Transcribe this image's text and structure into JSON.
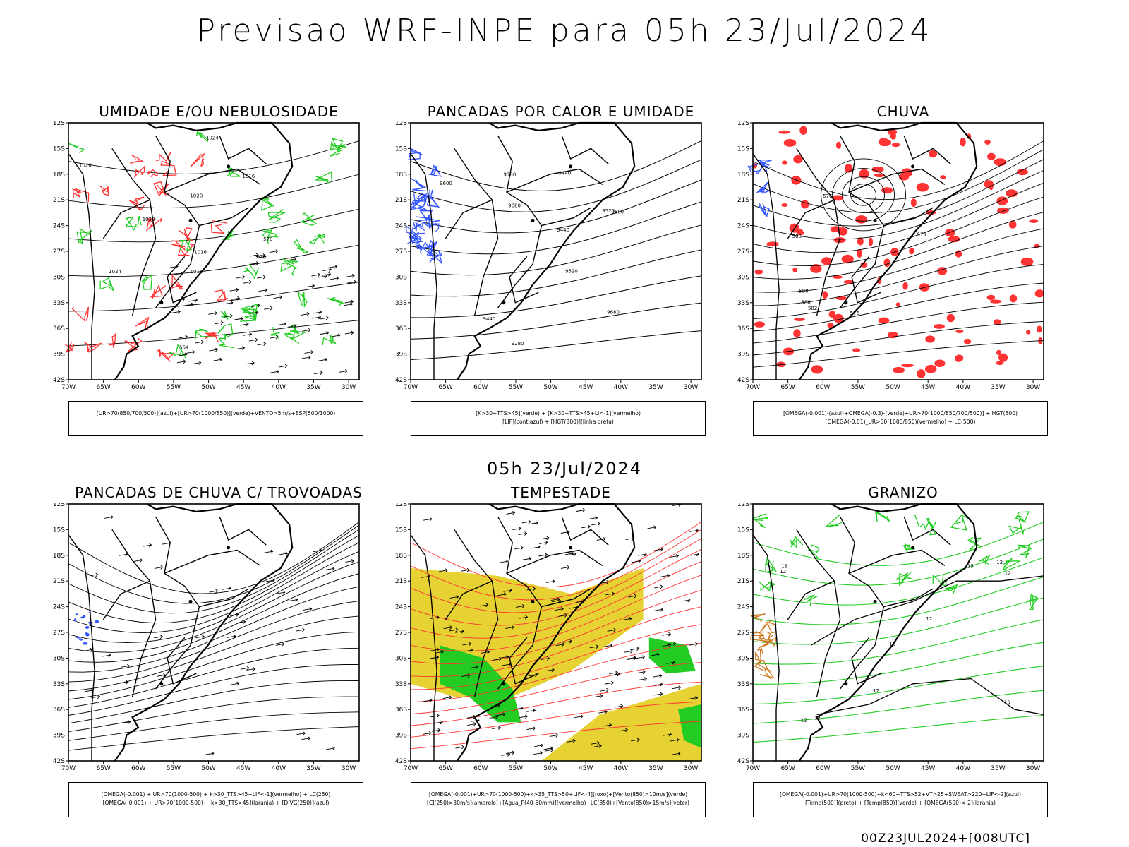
{
  "header": {
    "title": "Previsao WRF-INPE  para 05h 23/Jul/2024",
    "mid_title": "05h 23/Jul/2024",
    "footer": "00Z23JUL2024+[008UTC]"
  },
  "axes": {
    "lat_labels": [
      "12S",
      "15S",
      "18S",
      "21S",
      "24S",
      "27S",
      "30S",
      "33S",
      "36S",
      "39S",
      "42S"
    ],
    "lon_labels": [
      "70W",
      "65W",
      "60W",
      "55W",
      "50W",
      "45W",
      "40W",
      "35W",
      "30W"
    ]
  },
  "colors": {
    "green": "#22cc22",
    "red": "#ff3333",
    "blue": "#3355ff",
    "yellow": "#e6d232",
    "orange": "#cc7a22",
    "black": "#000000"
  },
  "panels": [
    {
      "id": "umidade",
      "title": "UMIDADE E/OU NEBULOSIDADE",
      "legend": [
        "[UR>70(850/700/500)](azul)+[UR>70(1000/850)](verde)+VENTO>5m/s+ESP(500/1000)"
      ],
      "contour_labels": [
        "1016",
        "1020",
        "1020",
        "1024",
        "1024",
        "1020",
        "1020",
        "1016",
        "1016",
        "570",
        "564"
      ]
    },
    {
      "id": "pancadas-calor",
      "title": "PANCADAS POR CALOR E UMIDADE",
      "legend": [
        "[K>30+TTS>45](verde) + [K>30+TTS>45+LI<-1](vermelho)",
        "[LIF](cont.azul) + [HGT(300)](linha preta)"
      ],
      "contour_labels": [
        "9680",
        "9680",
        "9680",
        "9600",
        "9520",
        "9520",
        "9440",
        "9440",
        "9440",
        "9280",
        "9380"
      ]
    },
    {
      "id": "chuva",
      "title": "CHUVA",
      "legend": [
        "[OMEGA(-0.001)-(azul)+OMEGA(-0.3)-(verde)+UR>70(1000/850/700/500)] + HGT(500)",
        "[OMEGA(-0.01)_UR>50(1000/850)(vermelho) + LC(500)"
      ],
      "contour_labels": [
        "588",
        "588",
        "588",
        "582",
        "576",
        "576",
        "573"
      ]
    },
    {
      "id": "pancadas-trovoadas",
      "title": "PANCADAS DE CHUVA C/ TROVOADAS",
      "legend": [
        "[OMEGA(-0.001) + UR>70(1000-500) + k>30_TTS>45+LIF<-1](vermelho) + LC(250)",
        "[OMEGA(-0.001) + UR>70(1000-500) + k>30_TTS>45](laranja) + [DIVG(250)](azul)"
      ],
      "contour_labels": []
    },
    {
      "id": "tempestade",
      "title": "TEMPESTADE",
      "legend": [
        "[OMEGA(-0.001)+UR>70(1000-500)+k>35_TTS>50+LIF<-4](roxo)+[Vento(850)>10m/s](verde)",
        "[CJ(250)>30m/s](amarelo)+[Agua_P(40-60mm)](vermelho)+LC(850)+[Vento(850)>15m/s](vetor)"
      ],
      "contour_labels": []
    },
    {
      "id": "granizo",
      "title": "GRANIZO",
      "legend": [
        "[OMEGA(-0.001)+UR>70(1000-500)+k<60+TTS>52+VT>25+SWEAT>220+LIF<-2](azul)",
        "[Temp(500)](preto) + [Temp(850)](verde) + [OMEGA(500)<-2](laranja)"
      ],
      "contour_labels": [
        "12",
        "12",
        "12",
        "15",
        "15",
        "12",
        "12",
        "18",
        "15",
        "12",
        "12"
      ]
    }
  ]
}
